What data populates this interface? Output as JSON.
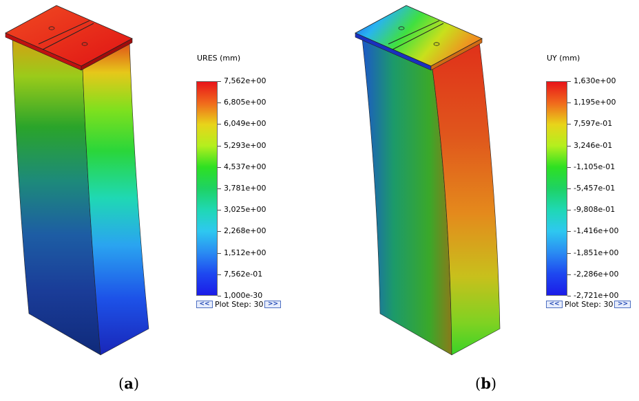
{
  "panels": [
    {
      "legend_title": "URES (mm)",
      "ticks": [
        "7,562e+00",
        "6,805e+00",
        "6,049e+00",
        "5,293e+00",
        "4,537e+00",
        "3,781e+00",
        "3,025e+00",
        "2,268e+00",
        "1,512e+00",
        "7,562e-01",
        "1,000e-30"
      ],
      "plot_step_label": "Plot Step: 30",
      "prev_label": "<<",
      "next_label": ">>",
      "caption_letter": "a"
    },
    {
      "legend_title": "UY (mm)",
      "ticks": [
        "1,630e+00",
        "1,195e+00",
        "7,597e-01",
        "3,246e-01",
        "-1,105e-01",
        "-5,457e-01",
        "-9,808e-01",
        "-1,416e+00",
        "-1,851e+00",
        "-2,286e+00",
        "-2,721e+00"
      ],
      "plot_step_label": "Plot Step: 30",
      "prev_label": "<<",
      "next_label": ">>",
      "caption_letter": "b"
    }
  ],
  "colors": {
    "colormap": [
      "#e8141a",
      "#f06a1c",
      "#e8d41a",
      "#b4ef1e",
      "#2ee022",
      "#1ed264",
      "#1fd8b4",
      "#2ec8f0",
      "#2a8cf2",
      "#1e48f0",
      "#1b1ce8"
    ]
  }
}
